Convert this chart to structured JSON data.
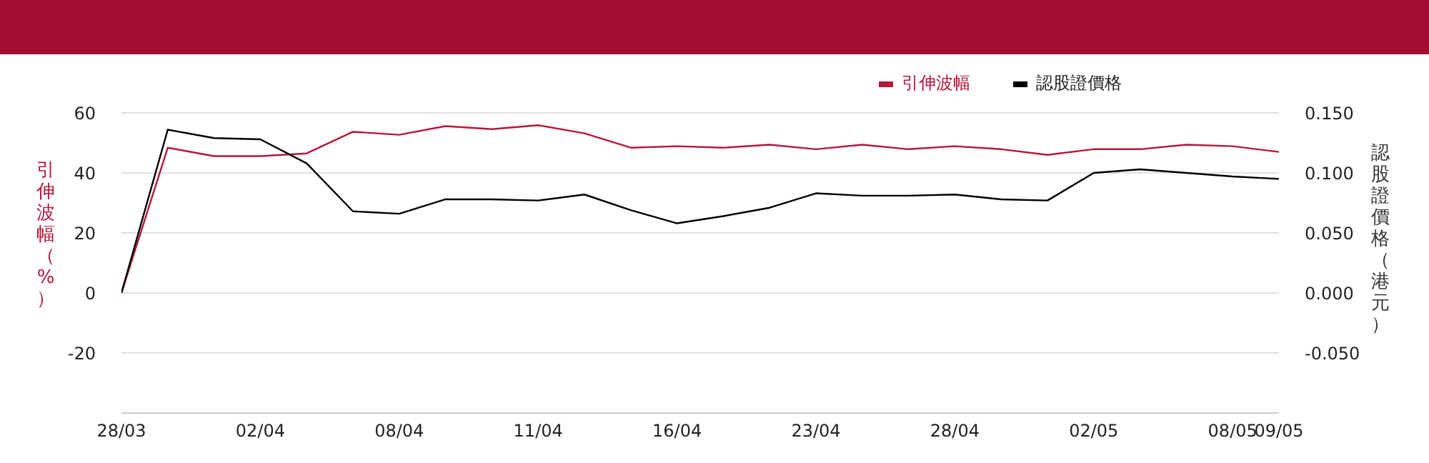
{
  "chart_data": {
    "type": "line",
    "ylabel": "引伸波幅（%）",
    "y2label": "認股證價格（港元）",
    "categories": [
      "28/03",
      null,
      null,
      "02/04",
      null,
      null,
      "08/04",
      null,
      null,
      "11/04",
      null,
      null,
      "16/04",
      null,
      null,
      "23/04",
      null,
      null,
      "28/04",
      null,
      null,
      "02/05",
      null,
      null,
      "08/05",
      "09/05"
    ],
    "series": [
      {
        "name": "引伸波幅",
        "color": "#b5173d",
        "values": [
          0,
          48.4,
          45.6,
          45.6,
          46.5,
          53.7,
          52.7,
          55.6,
          54.6,
          55.9,
          53.2,
          48.4,
          48.9,
          48.4,
          49.4,
          47.9,
          49.4,
          47.9,
          48.9,
          47.9,
          46.0,
          47.9,
          47.9,
          49.4,
          48.9,
          47.0
        ]
      },
      {
        "name": "認股證價格",
        "color": "#000000",
        "axis": "y2",
        "values": [
          0,
          0.136,
          0.129,
          0.128,
          0.108,
          0.068,
          0.066,
          0.078,
          0.078,
          0.077,
          0.082,
          0.069,
          0.058,
          0.064,
          0.071,
          0.083,
          0.081,
          0.081,
          0.082,
          0.078,
          0.077,
          0.1,
          0.103,
          0.1,
          0.097,
          0.095
        ]
      }
    ],
    "ylim": [
      -40,
      60
    ],
    "yticks": [
      -20,
      0,
      20,
      40,
      60
    ],
    "y2lim": [
      -0.1,
      0.15
    ],
    "y2ticks": [
      {
        "value": -0.05,
        "label": "-0.050"
      },
      {
        "value": 0,
        "label": "0.000"
      },
      {
        "value": 0.05,
        "label": "0.050"
      },
      {
        "value": 0.1,
        "label": "0.100"
      },
      {
        "value": 0.15,
        "label": "0.150"
      }
    ],
    "grid": "y",
    "legend": "top right",
    "marker": "none",
    "line_style": "solid"
  }
}
